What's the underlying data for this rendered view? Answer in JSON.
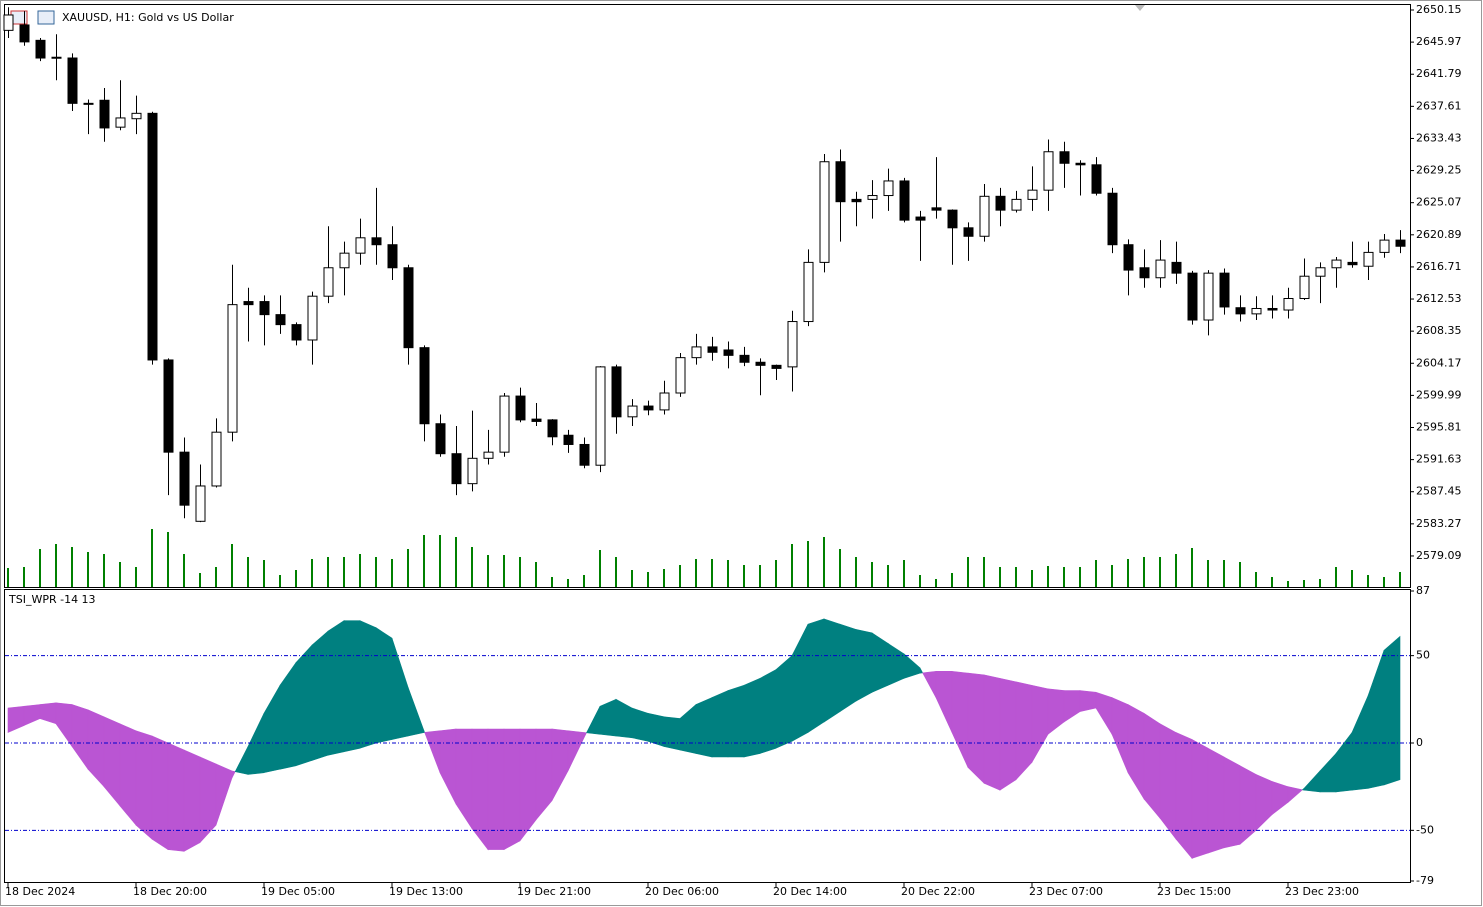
{
  "chart_data": [
    {
      "type": "candlestick",
      "title": "XAUUSD, H1:  Gold vs US Dollar",
      "categories": [
        "18 Dec 2024",
        null,
        null,
        null,
        null,
        null,
        null,
        null,
        "18 Dec 20:00",
        null,
        null,
        null,
        null,
        null,
        null,
        null,
        "19 Dec 05:00",
        null,
        null,
        null,
        null,
        null,
        null,
        null,
        "19 Dec 13:00",
        null,
        null,
        null,
        null,
        null,
        null,
        null,
        "19 Dec 21:00",
        null,
        null,
        null,
        null,
        null,
        null,
        null,
        "20 Dec 06:00",
        null,
        null,
        null,
        null,
        null,
        null,
        null,
        "20 Dec 14:00",
        null,
        null,
        null,
        null,
        null,
        null,
        null,
        "20 Dec 22:00",
        null,
        null,
        null,
        null,
        null,
        null,
        null,
        "23 Dec 07:00",
        null,
        null,
        null,
        null,
        null,
        null,
        null,
        "23 Dec 15:00",
        null,
        null,
        null,
        null,
        null,
        null,
        null,
        "23 Dec 23:00",
        null,
        null,
        null,
        null,
        null,
        null,
        null
      ],
      "open": [
        2647.5,
        2648.2,
        2646.2,
        2644,
        2643.9,
        2638,
        2638.4,
        2634.9,
        2636,
        2636.7,
        2604.6,
        2592.6,
        2583.6,
        2588.2,
        2595.2,
        2612.2,
        2612.2,
        2610.5,
        2609.2,
        2607.2,
        2612.9,
        2616.6,
        2618.5,
        2620.5,
        2619.6,
        2616.6,
        2606.2,
        2596.3,
        2592.4,
        2588.5,
        2591.8,
        2592.6,
        2599.9,
        2596.9,
        2596.8,
        2594.8,
        2593.6,
        2590.9,
        2603.7,
        2597.2,
        2598.6,
        2598.1,
        2600.3,
        2604.9,
        2606.3,
        2605.9,
        2605.2,
        2604.3,
        2603.9,
        2603.7,
        2609.6,
        2617.3,
        2630.4,
        2625.5,
        2625.5,
        2626,
        2627.9,
        2623.2,
        2624.4,
        2624.1,
        2621.8,
        2620.7,
        2625.9,
        2624.1,
        2625.5,
        2626.7,
        2631.7,
        2630.2,
        2630,
        2626.3,
        2619.6,
        2616.6,
        2615.3,
        2617.3,
        2615.9,
        2609.8,
        2615.9,
        2611.4,
        2610.6,
        2611.3,
        2611.1,
        2612.6,
        2615.5,
        2616.6,
        2617.3,
        2616.8,
        2618.6,
        2620.2
      ],
      "high": [
        2650.5,
        2650,
        2646.5,
        2647,
        2644.5,
        2638.5,
        2640,
        2641,
        2639,
        2636.9,
        2604.8,
        2594.5,
        2591,
        2597,
        2617,
        2614,
        2613,
        2613,
        2609.5,
        2613.5,
        2622,
        2620,
        2623,
        2627,
        2622,
        2617,
        2606.5,
        2597.5,
        2596,
        2598,
        2595.5,
        2600.3,
        2601,
        2599,
        2596.9,
        2595.5,
        2594.5,
        2603.8,
        2604,
        2599.5,
        2599.3,
        2601.9,
        2605.5,
        2608,
        2607.6,
        2607,
        2606.3,
        2604.8,
        2604,
        2611,
        2619,
        2631.4,
        2632,
        2626.5,
        2628,
        2629.5,
        2628.3,
        2624,
        2631,
        2624.2,
        2622.5,
        2627.5,
        2627,
        2626.6,
        2629.8,
        2633.3,
        2633,
        2630.6,
        2631,
        2627,
        2620.3,
        2619,
        2620.2,
        2620,
        2616.2,
        2616.3,
        2616.5,
        2613,
        2612.9,
        2613,
        2614,
        2617.8,
        2617.3,
        2618,
        2620,
        2620,
        2621,
        2621.5
      ],
      "low": [
        2646.5,
        2645.5,
        2643.5,
        2641,
        2637,
        2634,
        2633,
        2634.5,
        2634,
        2604,
        2587,
        2584,
        2583.5,
        2588,
        2594,
        2607,
        2606.5,
        2608,
        2606.5,
        2604,
        2612,
        2613,
        2617,
        2617,
        2615,
        2604,
        2594,
        2592,
        2587,
        2587.5,
        2591,
        2592,
        2596.5,
        2596,
        2593.5,
        2592.5,
        2590.5,
        2590,
        2595,
        2596,
        2597.4,
        2597.5,
        2599.8,
        2604,
        2604.5,
        2603.5,
        2603.8,
        2600,
        2602,
        2600.5,
        2609,
        2616,
        2620,
        2622,
        2623,
        2624,
        2622.5,
        2617.5,
        2623,
        2617,
        2617.5,
        2620,
        2622,
        2623.8,
        2624,
        2624,
        2627,
        2626,
        2626,
        2618.5,
        2613,
        2614,
        2614,
        2614.5,
        2609.2,
        2607.8,
        2610.5,
        2609.6,
        2609.8,
        2610,
        2610,
        2612.4,
        2612,
        2614,
        2616.6,
        2615,
        2617.9,
        2618.5
      ],
      "close": [
        2649.5,
        2646.0,
        2643.9,
        2644,
        2638.0,
        2638,
        2634.8,
        2636.1,
        2636.7,
        2604.6,
        2592.6,
        2585.7,
        2588.2,
        2595.2,
        2611.8,
        2611.8,
        2610.5,
        2609.2,
        2607.2,
        2612.9,
        2616.6,
        2618.5,
        2620.5,
        2619.6,
        2616.6,
        2606.2,
        2596.3,
        2592.4,
        2588.5,
        2591.8,
        2592.6,
        2599.9,
        2596.8,
        2596.6,
        2594.6,
        2593.6,
        2590.9,
        2603.7,
        2597.2,
        2598.6,
        2598.1,
        2600.3,
        2604.9,
        2606.3,
        2605.6,
        2605.2,
        2604.3,
        2603.9,
        2603.5,
        2609.6,
        2617.3,
        2630.4,
        2625.2,
        2625.2,
        2626,
        2627.9,
        2622.8,
        2622.8,
        2624.1,
        2621.8,
        2620.7,
        2625.9,
        2624.1,
        2625.5,
        2626.7,
        2631.7,
        2630.2,
        2630,
        2626.3,
        2619.6,
        2616.3,
        2615.3,
        2617.6,
        2615.9,
        2609.8,
        2615.9,
        2611.5,
        2610.6,
        2611.3,
        2611.1,
        2612.6,
        2615.5,
        2616.6,
        2617.6,
        2617.0,
        2618.6,
        2620.2,
        2619.4
      ],
      "volume": [
        19,
        20,
        38,
        43,
        40,
        35,
        33,
        25,
        20,
        58,
        55,
        33,
        14,
        20,
        43,
        30,
        27,
        12,
        17,
        28,
        30,
        30,
        33,
        30,
        28,
        38,
        52,
        52,
        50,
        40,
        32,
        32,
        30,
        25,
        10,
        8,
        12,
        37,
        30,
        17,
        15,
        18,
        22,
        28,
        28,
        27,
        22,
        22,
        27,
        43,
        46,
        50,
        38,
        30,
        25,
        22,
        27,
        12,
        8,
        14,
        30,
        30,
        20,
        20,
        17,
        21,
        20,
        20,
        27,
        22,
        28,
        30,
        30,
        33,
        39,
        27,
        27,
        25,
        15,
        10,
        6,
        7,
        8,
        20,
        17,
        12,
        10,
        15
      ],
      "up_color": "#ffffff",
      "down_color": "#000000",
      "volume_color": "#008000",
      "ylim": [
        2575.05,
        2650.8
      ],
      "yticks": [
        2650.15,
        2645.97,
        2641.79,
        2637.61,
        2633.43,
        2629.25,
        2625.07,
        2620.89,
        2616.71,
        2612.53,
        2608.35,
        2604.17,
        2599.99,
        2595.81,
        2591.63,
        2587.45,
        2583.27,
        2579.09
      ]
    },
    {
      "type": "fill-between",
      "title": "TSI_WPR -14 13",
      "series": [
        {
          "values": [
            6,
            10,
            14,
            11,
            -2,
            -15,
            -25,
            -36,
            -47,
            -55,
            -61,
            -62,
            -57,
            -47,
            -20,
            -2,
            17,
            33,
            46,
            56,
            64,
            70,
            70,
            66,
            60,
            32,
            7,
            -17,
            -35,
            -49,
            -61,
            -61,
            -56,
            -44,
            -33,
            -16,
            3,
            21,
            25,
            20,
            17,
            15,
            14,
            22,
            26,
            30,
            33,
            37,
            42,
            50,
            68,
            71,
            68,
            65,
            63,
            57,
            51,
            43,
            26,
            6,
            -14,
            -23,
            -27,
            -21,
            -11,
            5,
            12,
            18,
            20,
            5,
            -17,
            -32,
            -43,
            -55,
            -66,
            -63,
            -60,
            -58,
            -50,
            -41,
            -34,
            -26,
            -16,
            -6,
            6,
            27,
            53,
            61
          ]
        },
        {
          "values": [
            20,
            21,
            22,
            23,
            22,
            19,
            15,
            11,
            7,
            4,
            0,
            -4,
            -8,
            -12,
            -16,
            -18,
            -17,
            -15,
            -13,
            -10,
            -7,
            -5,
            -3,
            0,
            2,
            4,
            6,
            7,
            8,
            8,
            8,
            8,
            8,
            8,
            8,
            7,
            6,
            5,
            4,
            3,
            1,
            -2,
            -4,
            -6,
            -8,
            -8,
            -8,
            -6,
            -3,
            1,
            6,
            12,
            18,
            24,
            29,
            33,
            37,
            40,
            41,
            41,
            40,
            39,
            37,
            35,
            33,
            31,
            30,
            30,
            29,
            26,
            22,
            17,
            11,
            6,
            2,
            -3,
            -8,
            -13,
            -18,
            -22,
            -25,
            -27,
            -28,
            -28,
            -27,
            -26,
            -24,
            -21
          ]
        }
      ],
      "up_color": "#008080",
      "down_color": "#ba55d3",
      "levels": [
        50,
        0,
        -50
      ],
      "level_color": "#0000cd",
      "ylim": [
        -79,
        87
      ],
      "yticks": [
        87,
        50,
        0,
        -50,
        -79
      ]
    }
  ]
}
